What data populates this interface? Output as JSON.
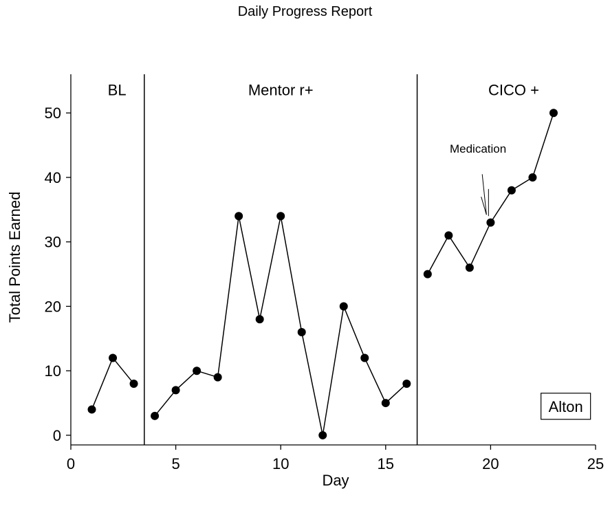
{
  "chart_data": {
    "type": "line",
    "title": "Daily Progress Report",
    "xlabel": "Day",
    "ylabel": "Total Points Earned",
    "xlim": [
      0,
      25
    ],
    "ylim": [
      -1.5,
      56
    ],
    "xticks": [
      0,
      5,
      10,
      15,
      20,
      25
    ],
    "yticks": [
      0,
      10,
      20,
      30,
      40,
      50
    ],
    "grid": false,
    "legend": "none",
    "phases": [
      {
        "label": "BL",
        "label_x": 2.2,
        "label_y": 53.5,
        "segment": [
          [
            1,
            4
          ],
          [
            2,
            12
          ],
          [
            3,
            8
          ]
        ]
      },
      {
        "label": "Mentor r+",
        "label_x": 10,
        "label_y": 53.5,
        "segment": [
          [
            4,
            3
          ],
          [
            5,
            7
          ],
          [
            6,
            10
          ],
          [
            7,
            9
          ],
          [
            8,
            34
          ],
          [
            9,
            18
          ],
          [
            10,
            34
          ],
          [
            11,
            16
          ],
          [
            12,
            0
          ],
          [
            13,
            20
          ],
          [
            14,
            12
          ],
          [
            15,
            5
          ],
          [
            16,
            8
          ]
        ]
      },
      {
        "label": "CICO +",
        "label_x": 21.1,
        "label_y": 53.5,
        "segment": [
          [
            17,
            25
          ],
          [
            18,
            31
          ],
          [
            19,
            26
          ],
          [
            20,
            33
          ],
          [
            21,
            38
          ],
          [
            22,
            40
          ],
          [
            23,
            50
          ]
        ]
      }
    ],
    "phase_change_lines": [
      3.5,
      16.5
    ],
    "annotation": {
      "text": "Medication",
      "x": 19.4,
      "y": 44.5,
      "arrow_to": [
        19.9,
        34
      ]
    },
    "participant_label": "Alton",
    "colors": {
      "line": "#000000",
      "marker": "#000000",
      "background": "#ffffff"
    }
  }
}
